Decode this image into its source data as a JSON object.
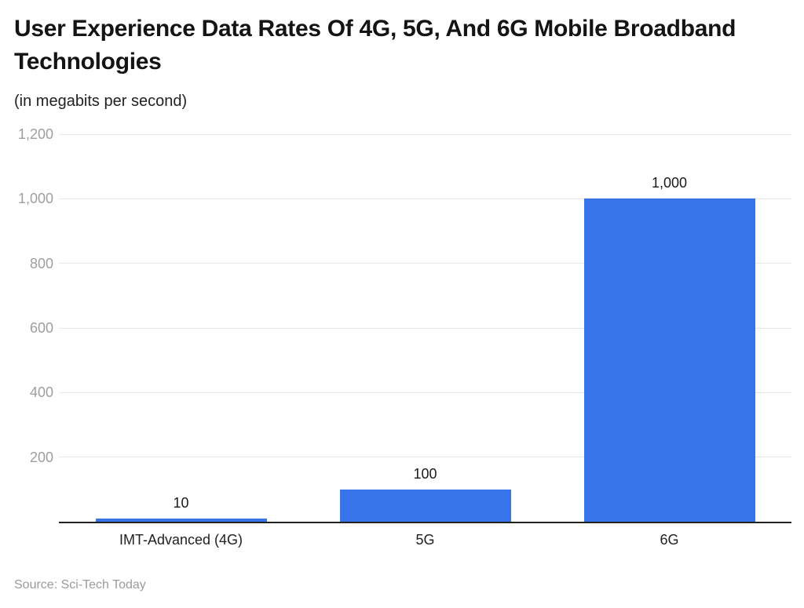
{
  "chart": {
    "title": "User Experience Data Rates Of 4G, 5G, And 6G Mobile Broadband Technologies",
    "subtitle": "(in megabits per second)",
    "source": "Source: Sci-Tech Today"
  },
  "chart_data": {
    "type": "bar",
    "title": "User Experience Data Rates Of 4G, 5G, And 6G Mobile Broadband Technologies",
    "subtitle": "(in megabits per second)",
    "source": "Source: Sci-Tech Today",
    "categories": [
      "IMT-Advanced (4G)",
      "5G",
      "6G"
    ],
    "values": [
      10,
      100,
      1000
    ],
    "value_labels": [
      "10",
      "100",
      "1,000"
    ],
    "xlabel": "",
    "ylabel": "",
    "ylim": [
      0,
      1200
    ],
    "yticks": [
      200,
      400,
      600,
      800,
      1000,
      1200
    ],
    "ytick_labels": [
      "200",
      "400",
      "600",
      "800",
      "1,000",
      "1,200"
    ],
    "grid": true,
    "legend": "none",
    "bar_color": "#3773e9",
    "gridline_color": "#e7e7e7",
    "axis_line_color": "#212121",
    "tick_label_color": "#9e9e9e",
    "value_label_color": "#1a1a1a",
    "category_label_color": "#212121"
  }
}
